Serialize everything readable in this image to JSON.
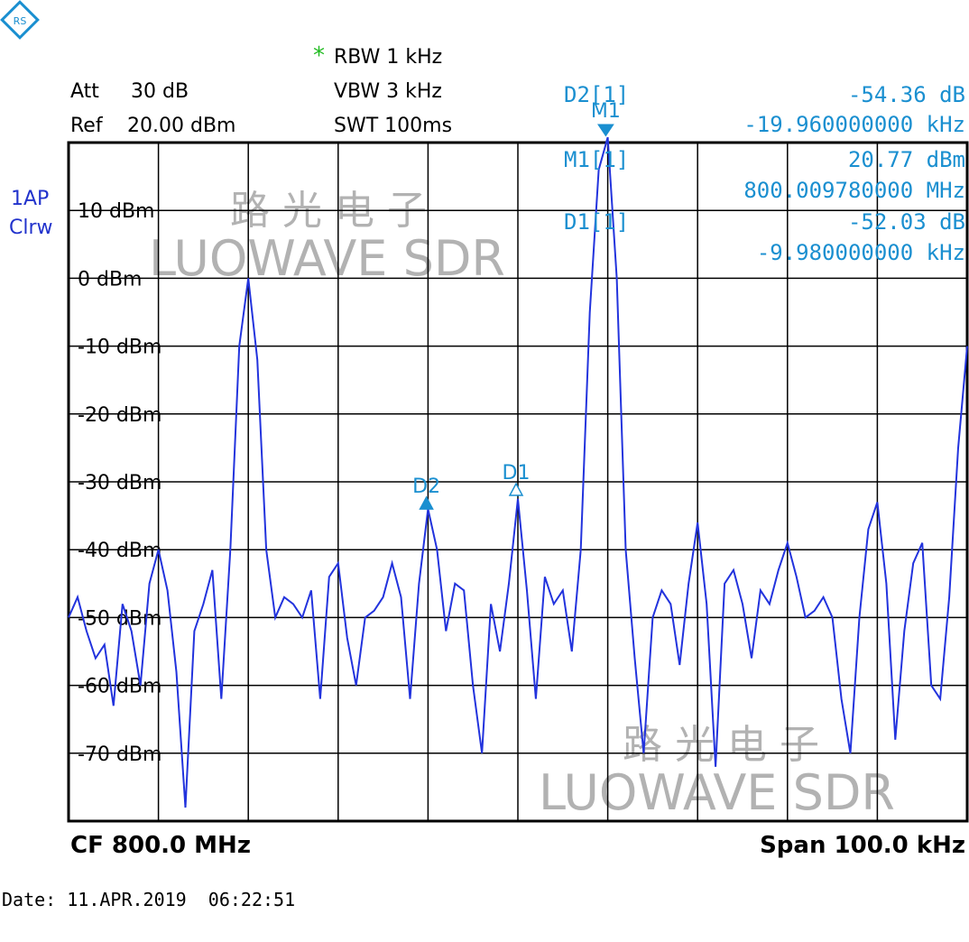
{
  "chart_data": {
    "type": "line",
    "header": {
      "att_label": "Att",
      "att": "30 dB",
      "ref_label": "Ref",
      "ref": "20.00 dBm",
      "star": "*",
      "rbw": "RBW 1 kHz",
      "vbw": "VBW 3 kHz",
      "swt": "SWT 100ms"
    },
    "trace_labels": [
      "1AP",
      "Clrw"
    ],
    "footer": {
      "cf": "CF 800.0 MHz",
      "span": "Span 100.0 kHz",
      "date": "Date: 11.APR.2019  06:22:51"
    },
    "watermark": [
      "路光电子",
      "LUOWAVE SDR"
    ],
    "readouts": [
      {
        "label": "D2[1]",
        "value": "-54.36 dB",
        "freq": "-19.960000000 kHz"
      },
      {
        "label": "M1[1]",
        "value": "20.77 dBm",
        "freq": "800.009780000 MHz"
      },
      {
        "label": "D1[1]",
        "value": "-52.03 dB",
        "freq": "-9.980000000 kHz"
      }
    ],
    "markers": [
      {
        "label": "M1",
        "x": 9.78,
        "value": 20.77
      },
      {
        "label": "D1",
        "x": -0.2,
        "value": -32
      },
      {
        "label": "D2",
        "x": -10.18,
        "value": -34
      }
    ],
    "x": [
      -50,
      -49,
      -48,
      -47,
      -46,
      -45,
      -44,
      -43,
      -42,
      -41,
      -40,
      -39,
      -38,
      -37,
      -36,
      -35,
      -34,
      -33,
      -32,
      -31,
      -30,
      -29,
      -28,
      -27,
      -26,
      -25,
      -24,
      -23,
      -22,
      -21,
      -20,
      -19,
      -18,
      -17,
      -16,
      -15,
      -14,
      -13,
      -12,
      -11,
      -10,
      -9,
      -8,
      -7,
      -6,
      -5,
      -4,
      -3,
      -2,
      -1,
      0,
      1,
      2,
      3,
      4,
      5,
      6,
      7,
      8,
      9,
      10,
      11,
      12,
      13,
      14,
      15,
      16,
      17,
      18,
      19,
      20,
      21,
      22,
      23,
      24,
      25,
      26,
      27,
      28,
      29,
      30,
      31,
      32,
      33,
      34,
      35,
      36,
      37,
      38,
      39,
      40,
      41,
      42,
      43,
      44,
      45,
      46,
      47,
      48,
      49,
      50
    ],
    "series": [
      {
        "color": "#2233dd",
        "values": [
          -50,
          -47,
          -52,
          -56,
          -54,
          -63,
          -48,
          -52,
          -60,
          -45,
          -40,
          -46,
          -58,
          -78,
          -52,
          -48,
          -43,
          -62,
          -40,
          -10,
          0,
          -12,
          -40,
          -50,
          -47,
          -48,
          -50,
          -46,
          -62,
          -44,
          -42,
          -53,
          -60,
          -50,
          -49,
          -47,
          -42,
          -47,
          -62,
          -45,
          -34,
          -40,
          -52,
          -45,
          -46,
          -60,
          -70,
          -48,
          -55,
          -45,
          -32.5,
          -46,
          -62,
          -44,
          -48,
          -46,
          -55,
          -40,
          -5,
          16,
          20.77,
          0,
          -40,
          -56,
          -70,
          -50,
          -46,
          -48,
          -57,
          -45,
          -36,
          -48,
          -72,
          -45,
          -43,
          -48,
          -56,
          -46,
          -48,
          -43,
          -39,
          -44,
          -50,
          -49,
          -47,
          -50,
          -62,
          -70,
          -50,
          -37,
          -33,
          -45,
          -68,
          -52,
          -42,
          -39,
          -60,
          -62,
          -47,
          -25,
          -10
        ]
      }
    ],
    "xlim": [
      -50,
      50
    ],
    "xticks": [
      -50,
      -40,
      -30,
      -20,
      -10,
      0,
      10,
      20,
      30,
      40,
      50
    ],
    "ylim": [
      -80,
      20
    ],
    "yticks": [
      {
        "value": 10,
        "label": "10 dBm"
      },
      {
        "value": 0,
        "label": "0 dBm"
      },
      {
        "value": -10,
        "label": "-10 dBm"
      },
      {
        "value": -20,
        "label": "-20 dBm"
      },
      {
        "value": -30,
        "label": "-30 dBm"
      },
      {
        "value": -40,
        "label": "-40 dBm"
      },
      {
        "value": -50,
        "label": "-50 dBm"
      },
      {
        "value": -60,
        "label": "-60 dBm"
      },
      {
        "value": -70,
        "label": "-70 dBm"
      }
    ],
    "grid": true
  }
}
